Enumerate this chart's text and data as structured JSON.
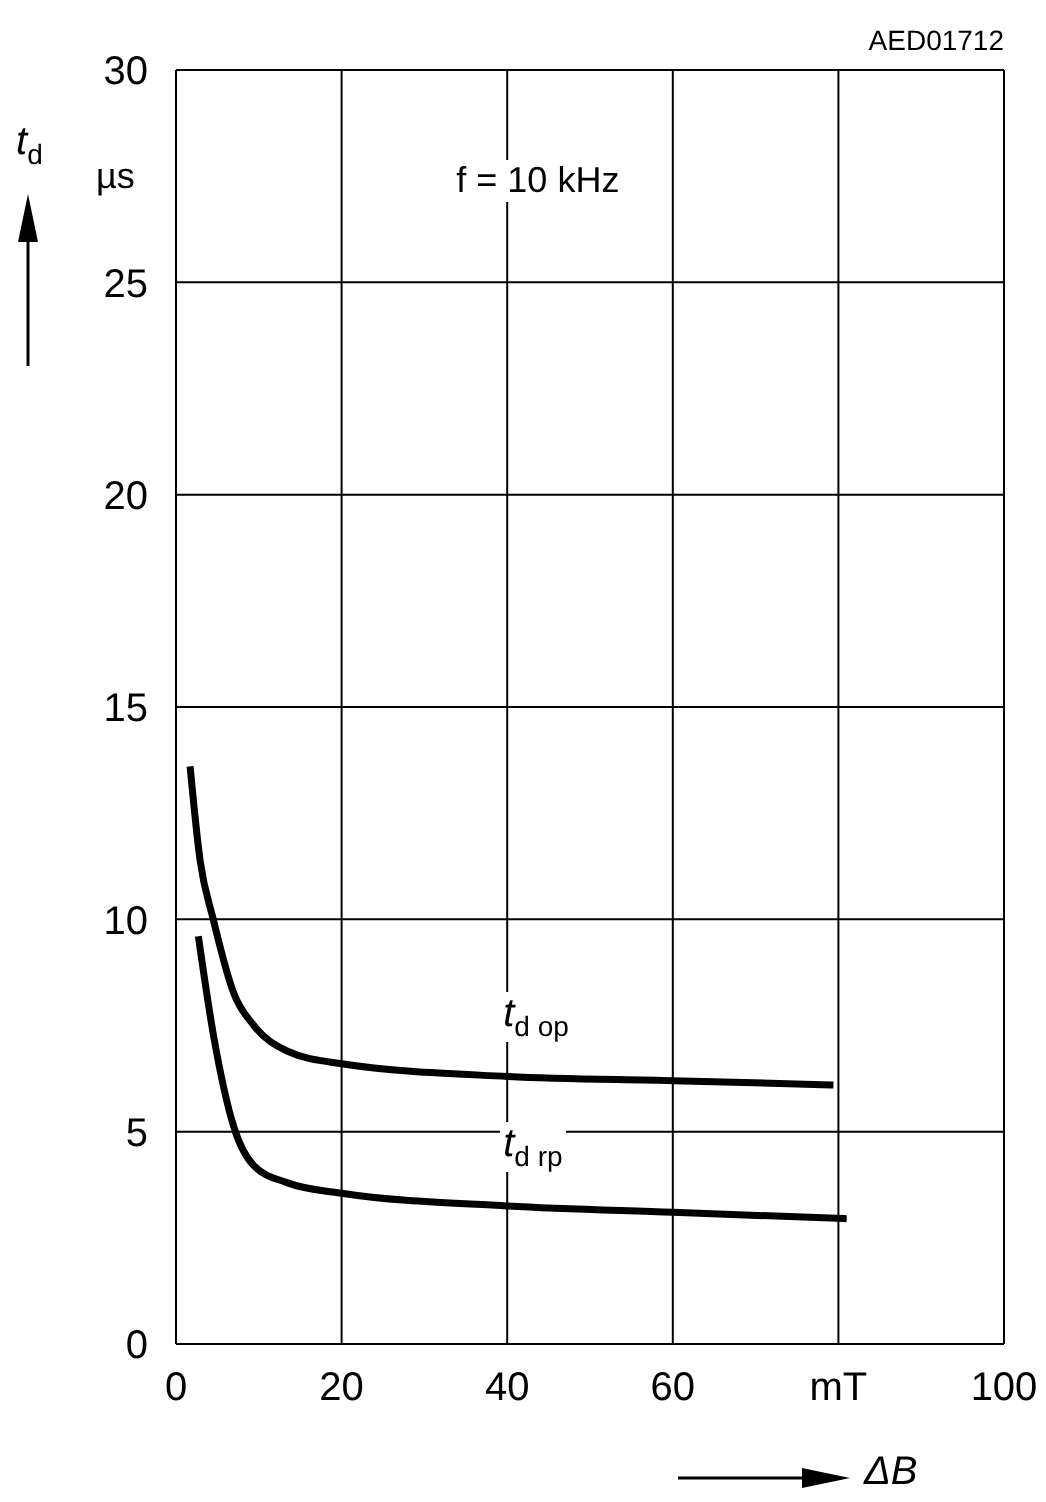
{
  "chart_data": {
    "type": "line",
    "xlabel": "ΔB",
    "ylabel": "t$_{d}$",
    "annotations": [
      "AED01712",
      "µs",
      "f = 10 kHz"
    ],
    "xlim": [
      0,
      100
    ],
    "ylim": [
      0,
      30
    ],
    "xticks": [
      0,
      20,
      40,
      60,
      {
        "value": 80,
        "label": "mT"
      },
      100
    ],
    "yticks": [
      0,
      5,
      10,
      15,
      20,
      25,
      30
    ],
    "grid": true,
    "marker": "none",
    "line_style": "solid",
    "legend": false,
    "series": [
      {
        "name": "t$_{d op}$",
        "color": "#000000",
        "x": [
          1.7,
          2.9,
          4.5,
          7,
          9.4,
          13.4,
          20,
          40,
          60,
          79.4
        ],
        "values": [
          13.6,
          11.4,
          10.0,
          8.25,
          7.5,
          6.9,
          6.6,
          6.3,
          6.2,
          6.1
        ]
      },
      {
        "name": "t$_{d rp}$",
        "color": "#000000",
        "x": [
          2.7,
          4.5,
          7,
          9.4,
          13.4,
          20,
          40,
          60,
          81
        ],
        "values": [
          9.6,
          7.3,
          5.1,
          4.2,
          3.8,
          3.55,
          3.25,
          3.1,
          2.95
        ]
      }
    ]
  }
}
